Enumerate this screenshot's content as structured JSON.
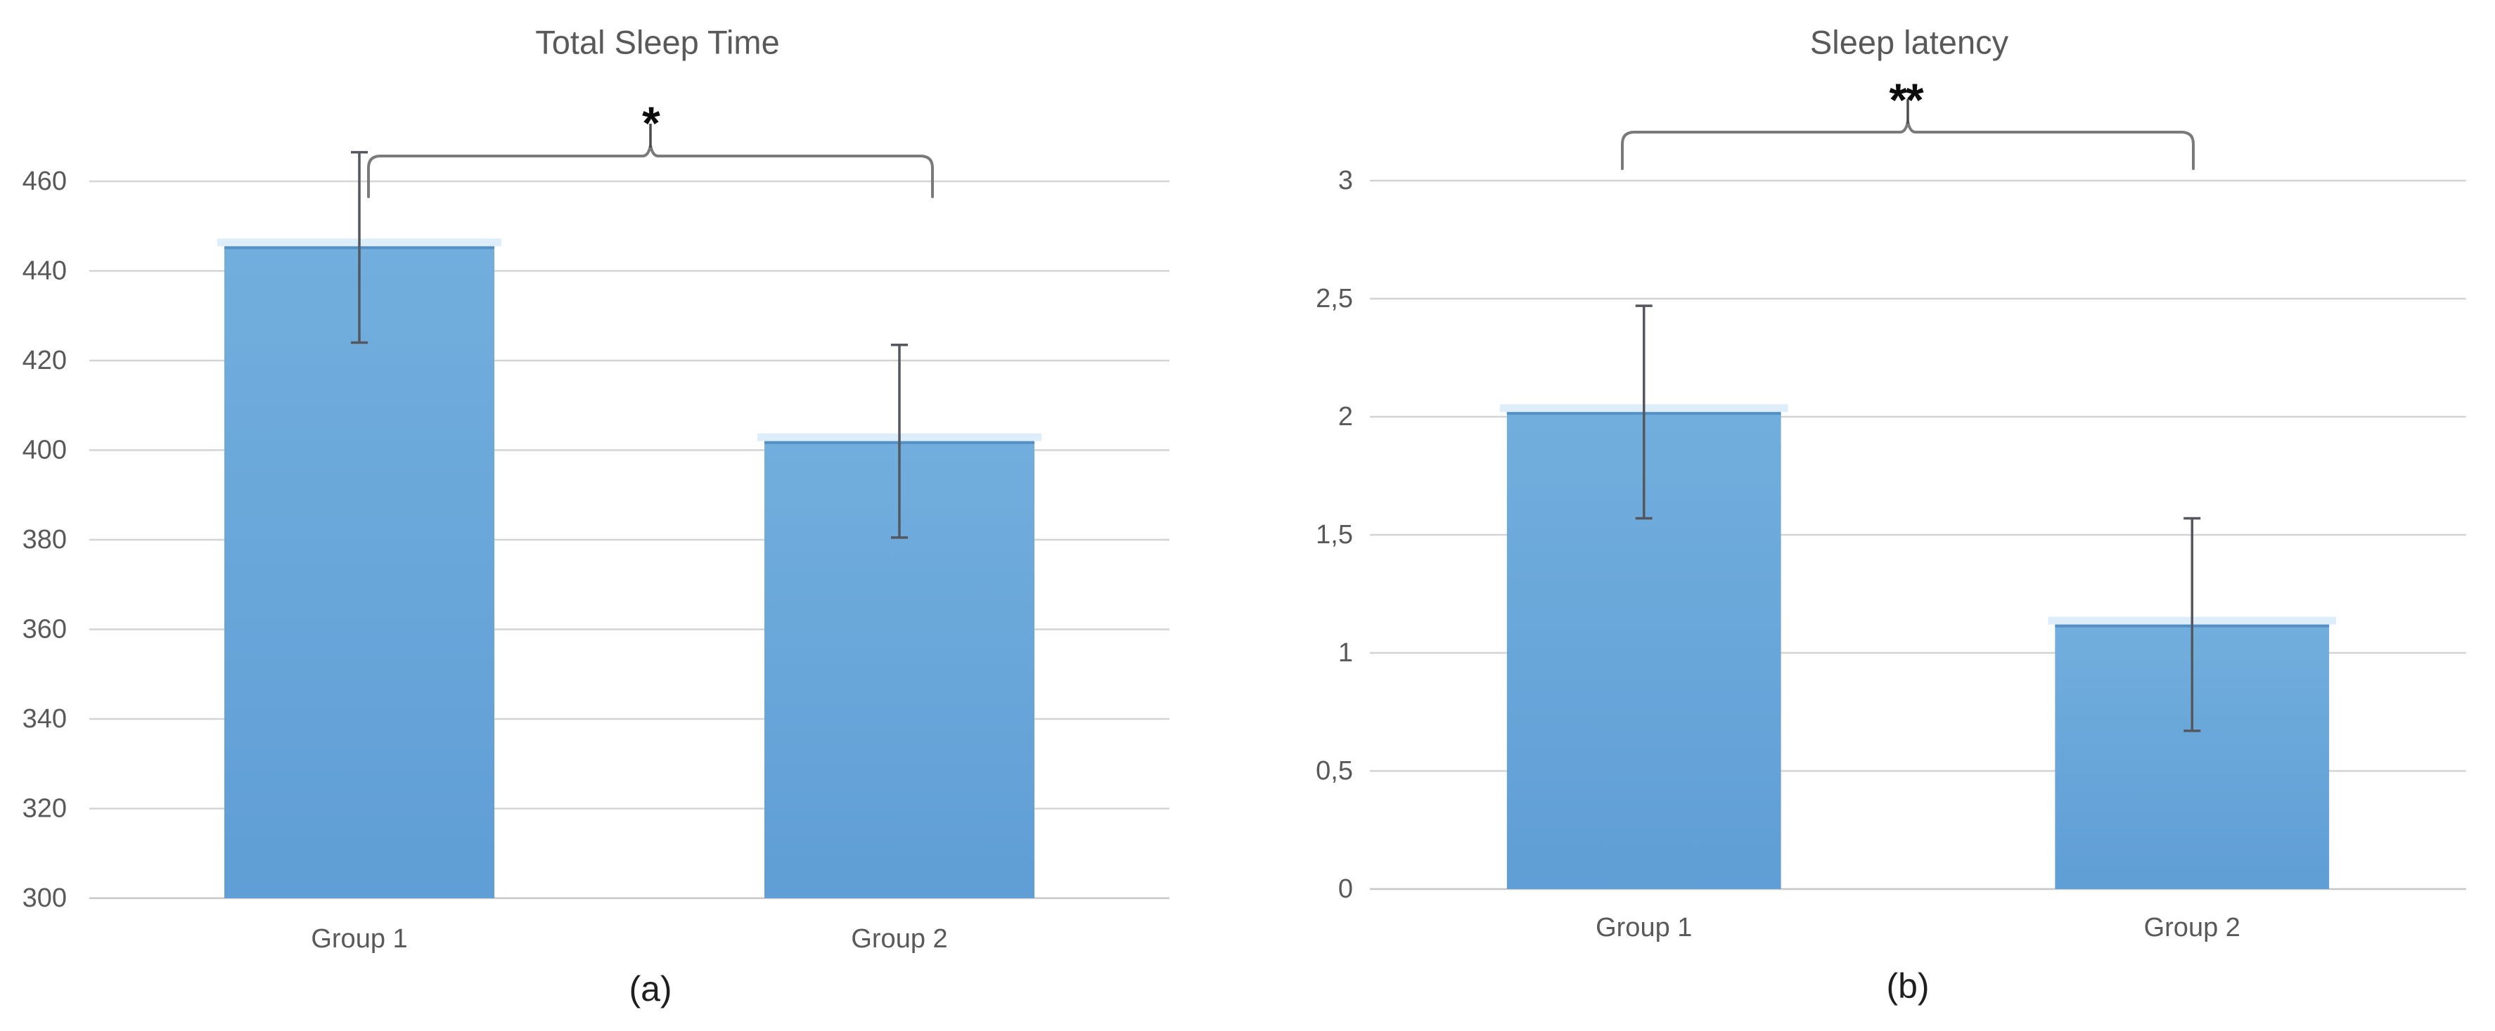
{
  "figure": {
    "background": "#ffffff",
    "description": "Two-panel bar chart comparing Group 1 and Group 2"
  },
  "colors": {
    "bar_fill_top": "#72aedd",
    "bar_fill_bottom": "#5f9ed6",
    "bar_top_border": "#5590c5",
    "bar_glow": "#ddedf9",
    "gridline": "#d4d4d4",
    "baseline": "#c7c7c7",
    "error_bar": "#54575d",
    "bracket": "#7a7a7a",
    "connector": "#4a4a4a",
    "axis_text": "#595959",
    "caption_text": "#1f1f1f",
    "star_text": "#0d0d0d"
  },
  "chart_data": [
    {
      "type": "bar",
      "title": "Total Sleep Time",
      "caption": "(a)",
      "categories": [
        "Group 1",
        "Group 2"
      ],
      "values": [
        445.5,
        402
      ],
      "error_low": [
        424,
        380.5
      ],
      "error_high": [
        466.5,
        423.5
      ],
      "ylim": [
        300,
        460
      ],
      "ytick_step": 20,
      "ytick_labels": [
        "300",
        "320",
        "340",
        "360",
        "380",
        "400",
        "420",
        "440",
        "460"
      ],
      "significance": "*",
      "grid": true,
      "legend": "none",
      "bar_color": "#5b9bd5"
    },
    {
      "type": "bar",
      "title": "Sleep latency",
      "caption": "(b)",
      "categories": [
        "Group 1",
        "Group 2"
      ],
      "values": [
        2.02,
        1.12
      ],
      "error_low": [
        1.57,
        0.67
      ],
      "error_high": [
        2.47,
        1.57
      ],
      "ylim": [
        0,
        3
      ],
      "ytick_step": 0.5,
      "ytick_labels": [
        "0",
        "0,5",
        "1",
        "1,5",
        "2",
        "2,5",
        "3"
      ],
      "significance": "**",
      "grid": true,
      "legend": "none",
      "bar_color": "#5b9bd5"
    }
  ]
}
